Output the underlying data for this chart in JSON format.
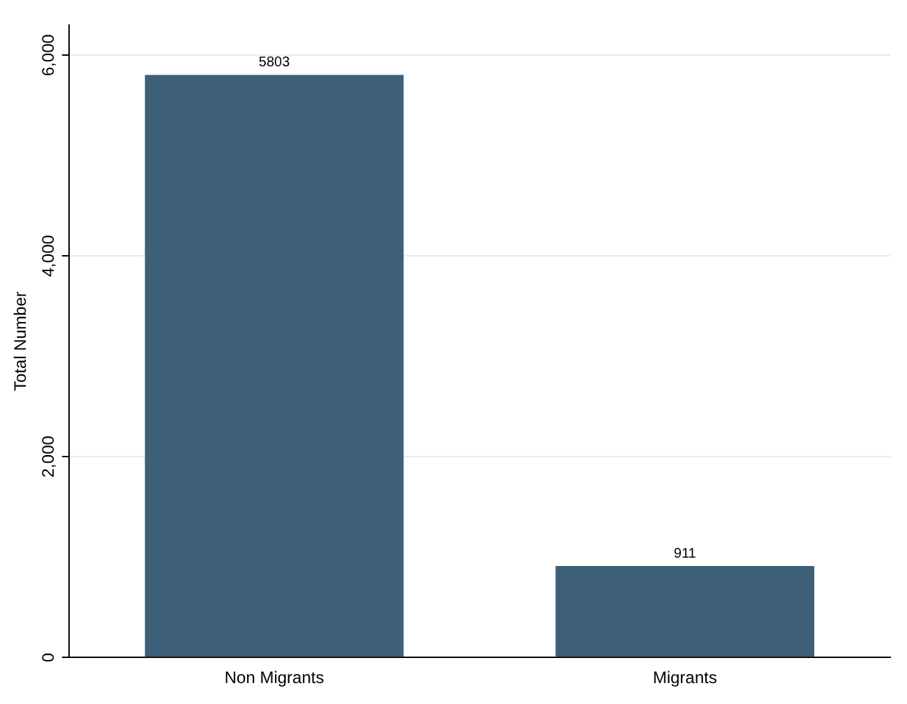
{
  "chart_data": {
    "type": "bar",
    "ylabel": "Total Number",
    "categories": [
      "Non Migrants",
      "Migrants"
    ],
    "values": [
      5803,
      911
    ],
    "color": "#3e5f78",
    "data_labels": true,
    "ylim": [
      0,
      6300
    ],
    "yticks": [
      {
        "value": 0,
        "label": "0"
      },
      {
        "value": 2000,
        "label": "2,000"
      },
      {
        "value": 4000,
        "label": "4,000"
      },
      {
        "value": 6000,
        "label": "6,000"
      }
    ],
    "grid": "y"
  }
}
